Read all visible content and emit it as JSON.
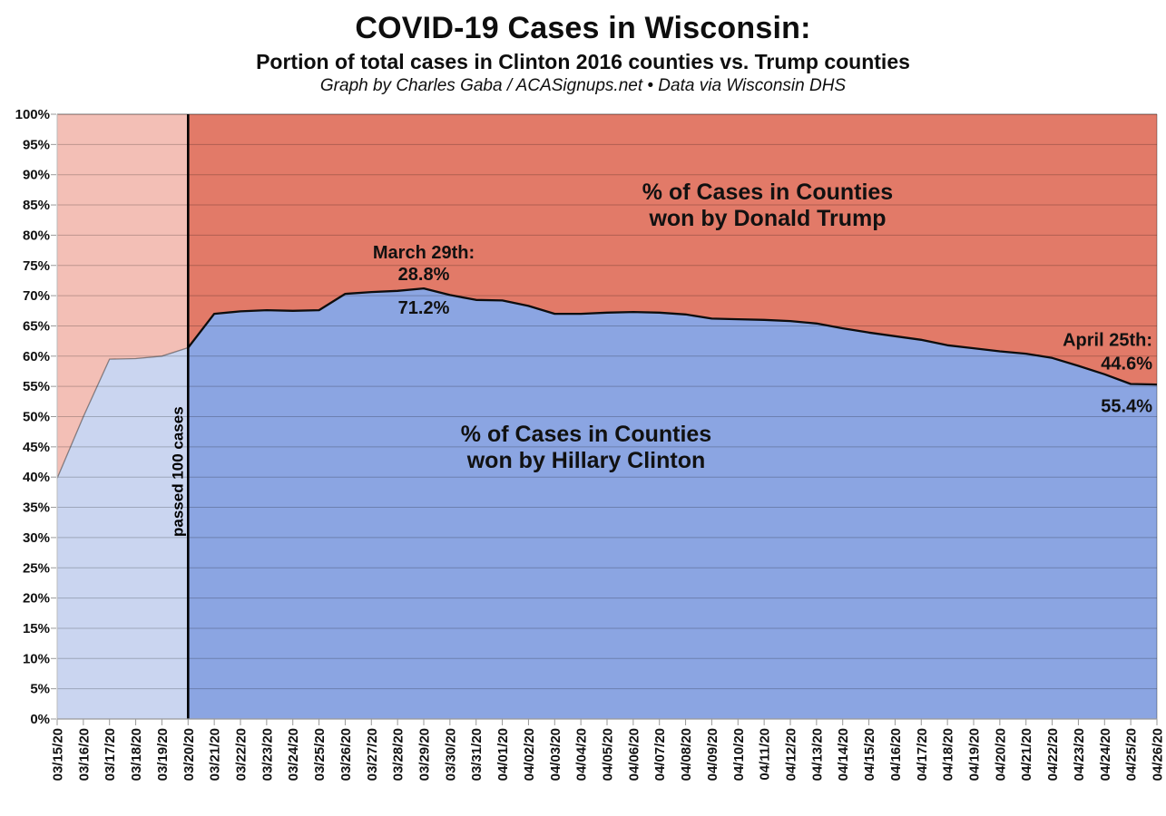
{
  "header": {
    "title": "COVID-19 Cases in Wisconsin:",
    "subtitle": "Portion of total cases in Clinton 2016 counties vs. Trump counties",
    "credit": "Graph by Charles Gaba / ACASignups.net  •  Data via Wisconsin DHS"
  },
  "chart_data": {
    "type": "area",
    "stacked": true,
    "title": "COVID-19 Cases in Wisconsin:",
    "xlabel": "",
    "ylabel": "",
    "ylim": [
      0,
      100
    ],
    "ytick_step": 5,
    "ytick_suffix": "%",
    "grid": "horizontal",
    "legend_position": "none",
    "x": [
      "03/15/20",
      "03/16/20",
      "03/17/20",
      "03/18/20",
      "03/19/20",
      "03/20/20",
      "03/21/20",
      "03/22/20",
      "03/23/20",
      "03/24/20",
      "03/25/20",
      "03/26/20",
      "03/27/20",
      "03/28/20",
      "03/29/20",
      "03/30/20",
      "03/31/20",
      "04/01/20",
      "04/02/20",
      "04/03/20",
      "04/04/20",
      "04/05/20",
      "04/06/20",
      "04/07/20",
      "04/08/20",
      "04/09/20",
      "04/10/20",
      "04/11/20",
      "04/12/20",
      "04/13/20",
      "04/14/20",
      "04/15/20",
      "04/16/20",
      "04/17/20",
      "04/18/20",
      "04/19/20",
      "04/20/20",
      "04/21/20",
      "04/22/20",
      "04/23/20",
      "04/24/20",
      "04/25/20",
      "04/26/20"
    ],
    "series": [
      {
        "name": "% of Cases in Counties won by Hillary Clinton",
        "label_lines": [
          "% of Cases in Counties",
          "won by Hillary Clinton"
        ],
        "values": [
          39.8,
          50.0,
          59.5,
          59.6,
          60.0,
          61.4,
          67.0,
          67.4,
          67.6,
          67.5,
          67.6,
          70.3,
          70.6,
          70.8,
          71.2,
          70.1,
          69.3,
          69.2,
          68.3,
          67.0,
          67.0,
          67.2,
          67.3,
          67.2,
          66.9,
          66.2,
          66.1,
          66.0,
          65.8,
          65.4,
          64.6,
          63.9,
          63.3,
          62.7,
          61.8,
          61.3,
          60.8,
          60.4,
          59.7,
          58.4,
          57.0,
          55.4,
          55.3
        ],
        "color": "#8BA5E2",
        "faded_color": "#CAD5F0"
      },
      {
        "name": "% of Cases in Counties won by Donald Trump",
        "label_lines": [
          "% of Cases in Counties",
          "won by Donald Trump"
        ],
        "values": [
          60.2,
          50.0,
          40.5,
          40.4,
          40.0,
          38.6,
          33.0,
          32.6,
          32.4,
          32.5,
          32.4,
          29.7,
          29.4,
          29.2,
          28.8,
          29.9,
          30.7,
          30.8,
          31.7,
          33.0,
          33.0,
          32.8,
          32.7,
          32.8,
          33.1,
          33.8,
          33.9,
          34.0,
          34.2,
          34.6,
          35.4,
          36.1,
          36.7,
          37.3,
          38.2,
          38.7,
          39.2,
          39.6,
          40.3,
          41.6,
          43.0,
          44.6,
          44.7
        ],
        "color": "#E27A68",
        "faded_color": "#F3BFB6"
      }
    ],
    "vline": {
      "date": "03/20/20",
      "label": "passed 100 cases"
    },
    "annotations": [
      {
        "date": "03/29/20",
        "title": "March 29th:",
        "trump_value": "28.8%",
        "clinton_value": "71.2%"
      },
      {
        "date": "04/25/20",
        "title": "April 25th:",
        "trump_value": "44.6%",
        "clinton_value": "55.4%"
      }
    ],
    "colors": {
      "boundary_line": "#0d0d0d",
      "faded_boundary_line": "rgba(40,40,40,0.5)",
      "gridline": "rgba(0,0,0,0.22)",
      "axis": "#999999",
      "text": "#111111"
    }
  }
}
